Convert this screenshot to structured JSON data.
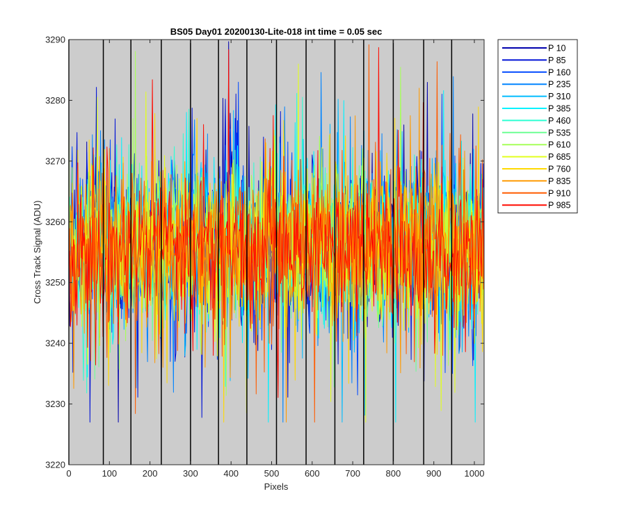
{
  "chart_data": {
    "type": "line",
    "title": "BS05 Day01 20200130-Lite-018 int time = 0.05 sec",
    "xlabel": "Pixels",
    "ylabel": "Cross Track Signal (ADU)",
    "xlim": [
      0,
      1024
    ],
    "ylim": [
      3220,
      3290
    ],
    "xticks": [
      0,
      100,
      200,
      300,
      400,
      500,
      600,
      700,
      800,
      900,
      1000
    ],
    "yticks": [
      3220,
      3230,
      3240,
      3250,
      3260,
      3270,
      3280,
      3290
    ],
    "background": "#cccccc",
    "grid": false,
    "vertical_markers": [
      0,
      85,
      153,
      228,
      300,
      369,
      439,
      512,
      585,
      656,
      727,
      800,
      875,
      944
    ],
    "legend_position": "outside-right-top",
    "signal_model": {
      "mean": 3256,
      "noise_std": 7,
      "band_typical": [
        3240,
        3272
      ],
      "outlier_range": [
        3227,
        3290
      ],
      "hot_region": {
        "x": [
          380,
          420
        ],
        "max_spike": 3290
      }
    },
    "series": [
      {
        "name": "P 10",
        "color": "#0000ad"
      },
      {
        "name": "P 85",
        "color": "#0012d6"
      },
      {
        "name": "P 160",
        "color": "#0049ff"
      },
      {
        "name": "P 235",
        "color": "#0084ff"
      },
      {
        "name": "P 310",
        "color": "#00bcff"
      },
      {
        "name": "P 385",
        "color": "#00f2ff"
      },
      {
        "name": "P 460",
        "color": "#2cffd3"
      },
      {
        "name": "P 535",
        "color": "#6cff93"
      },
      {
        "name": "P 610",
        "color": "#a6ff59"
      },
      {
        "name": "P 685",
        "color": "#e2ff1d"
      },
      {
        "name": "P 760",
        "color": "#ffd900"
      },
      {
        "name": "P 835",
        "color": "#ff9a00"
      },
      {
        "name": "P 910",
        "color": "#ff5c00"
      },
      {
        "name": "P 985",
        "color": "#ff0a00"
      }
    ]
  }
}
